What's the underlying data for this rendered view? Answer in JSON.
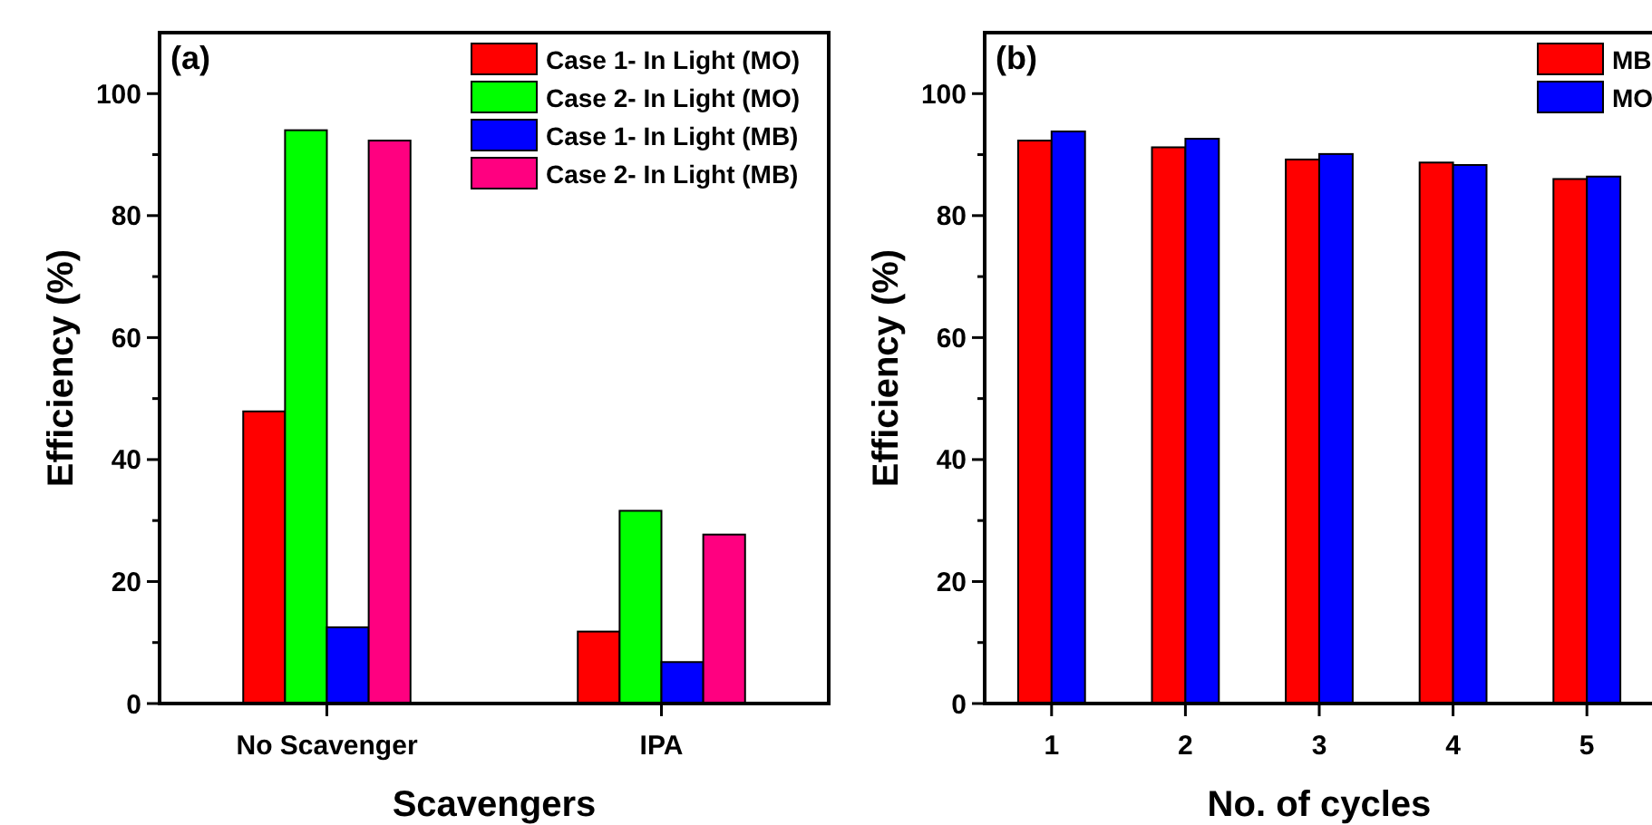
{
  "chart_data": [
    {
      "type": "bar",
      "xlabel": "Scavengers",
      "ylabel": "Efficiency (%)",
      "categories": [
        "No Scavenger",
        "IPA"
      ],
      "series": [
        {
          "name": "Case 1- In Light (MO)",
          "color": "#ff0000",
          "values": [
            47.9,
            11.8
          ]
        },
        {
          "name": "Case 2- In Light (MO)",
          "color": "#00ff00",
          "values": [
            94,
            31.6
          ]
        },
        {
          "name": "Case 1- In Light (MB)",
          "color": "#0000ff",
          "values": [
            12.5,
            6.8
          ]
        },
        {
          "name": "Case 2- In Light (MB)",
          "color": "#ff0080",
          "values": [
            92.3,
            27.7
          ]
        }
      ],
      "ylim": [
        0,
        110
      ],
      "yticks": [
        0,
        {
          "value": 10,
          "label": null
        },
        20,
        {
          "value": 30,
          "label": null
        },
        40,
        {
          "value": 50,
          "label": null
        },
        60,
        {
          "value": 70,
          "label": null
        },
        80,
        {
          "value": 90,
          "label": null
        },
        100
      ],
      "legend": "top right",
      "annotations": [
        "(a)"
      ]
    },
    {
      "type": "bar",
      "xlabel": "No. of cycles",
      "ylabel": "Efficiency (%)",
      "categories": [
        "1",
        "2",
        "3",
        "4",
        "5"
      ],
      "series": [
        {
          "name": "MB",
          "color": "#ff0000",
          "values": [
            92.3,
            91.2,
            89.2,
            88.7,
            86.0
          ]
        },
        {
          "name": "MO",
          "color": "#0000ff",
          "values": [
            93.8,
            92.6,
            90.1,
            88.3,
            86.4
          ]
        }
      ],
      "ylim": [
        0,
        110
      ],
      "yticks": [
        0,
        {
          "value": 10,
          "label": null
        },
        20,
        {
          "value": 30,
          "label": null
        },
        40,
        {
          "value": 50,
          "label": null
        },
        60,
        {
          "value": 70,
          "label": null
        },
        80,
        {
          "value": 90,
          "label": null
        },
        100
      ],
      "legend": "top right",
      "annotations": [
        "(b)"
      ]
    }
  ]
}
